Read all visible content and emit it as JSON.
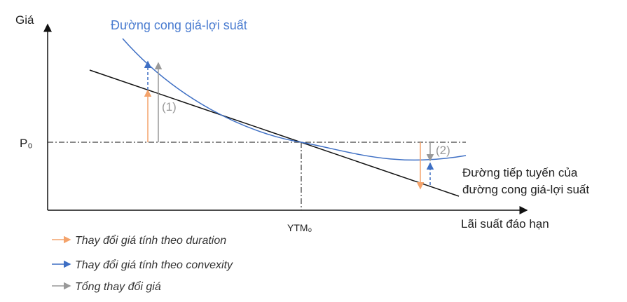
{
  "axes": {
    "y_label": "Giá",
    "x_label": "Lãi suất đáo hạn",
    "p0_label": "P₀",
    "ytm0_label": "YTM₀"
  },
  "curve_label": "Đường cong giá-lợi suất",
  "tangent_label": {
    "line1": "Đường tiếp tuyến của",
    "line2": "đường cong giá-lợi suất"
  },
  "markers": [
    "(1)",
    "(2)"
  ],
  "legend": [
    "Thay đổi giá tính theo duration",
    "Thay đổi giá tính theo convexity",
    "Tổng thay đổi giá"
  ]
}
